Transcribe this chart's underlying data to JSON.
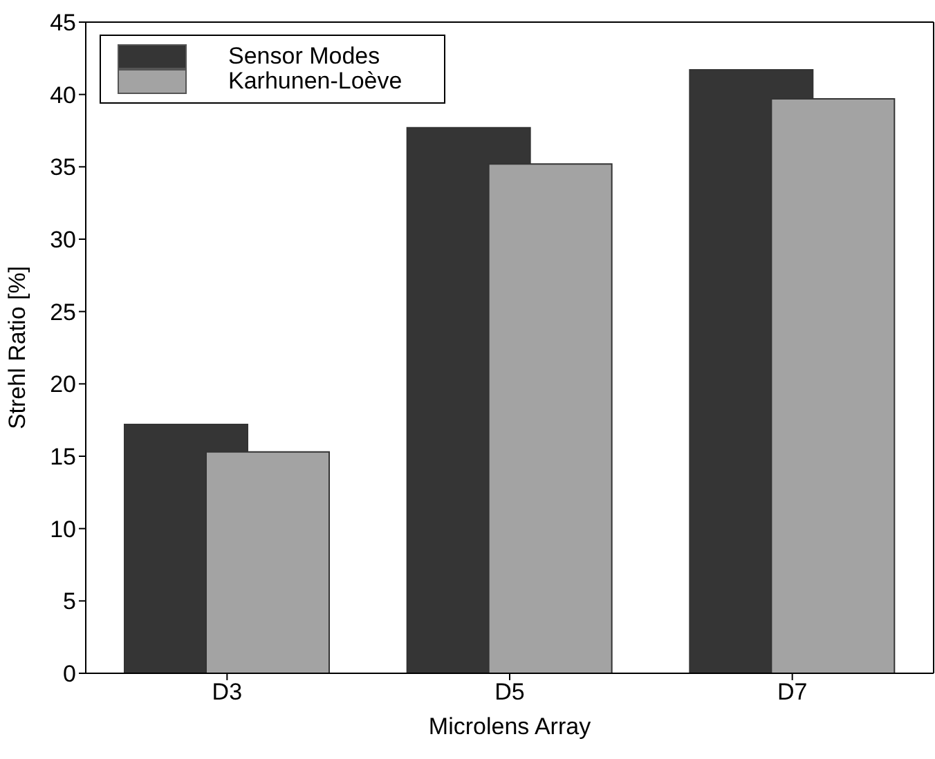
{
  "chart_data": {
    "type": "bar",
    "xlabel": "Microlens Array",
    "ylabel": "Strehl Ratio [%]",
    "categories": [
      "D3",
      "D5",
      "D7"
    ],
    "series": [
      {
        "name": "Sensor Modes",
        "color": "#353535",
        "values": [
          17.2,
          37.7,
          41.7
        ]
      },
      {
        "name": "Karhunen-Loève",
        "color": "#a3a3a3",
        "values": [
          15.3,
          35.2,
          39.7
        ]
      }
    ],
    "ylim": [
      0,
      45
    ],
    "yticks": [
      0,
      5,
      10,
      15,
      20,
      25,
      30,
      35,
      40,
      45
    ],
    "grid": false,
    "legend": "top left"
  }
}
